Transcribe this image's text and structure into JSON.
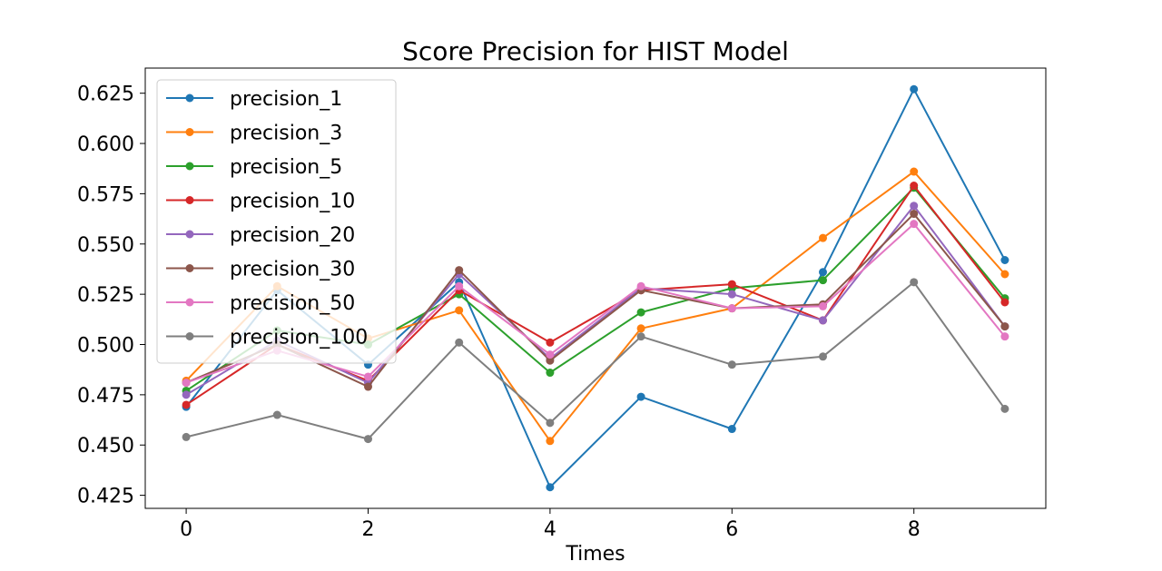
{
  "chart_data": {
    "type": "line",
    "title": "Score Precision for HIST Model",
    "xlabel": "Times",
    "ylabel": "",
    "xlim": [
      -0.45,
      9.45
    ],
    "ylim": [
      0.4185,
      0.6375
    ],
    "xticks": [
      0,
      2,
      4,
      6,
      8
    ],
    "xtick_labels": [
      "0",
      "2",
      "4",
      "6",
      "8"
    ],
    "yticks": [
      0.425,
      0.45,
      0.475,
      0.5,
      0.525,
      0.55,
      0.575,
      0.6,
      0.625
    ],
    "ytick_labels": [
      "0.425",
      "0.450",
      "0.475",
      "0.500",
      "0.525",
      "0.550",
      "0.575",
      "0.600",
      "0.625"
    ],
    "grid": false,
    "legend_position": "upper-left",
    "x": [
      0,
      1,
      2,
      3,
      4,
      5,
      6,
      7,
      8,
      9
    ],
    "series": [
      {
        "name": "precision_1",
        "color": "#1f77b4",
        "values": [
          0.469,
          0.527,
          0.49,
          0.531,
          0.429,
          0.474,
          0.458,
          0.536,
          0.627,
          0.542
        ]
      },
      {
        "name": "precision_3",
        "color": "#ff7f0e",
        "values": [
          0.482,
          0.529,
          0.503,
          0.517,
          0.452,
          0.508,
          0.518,
          0.553,
          0.586,
          0.535
        ]
      },
      {
        "name": "precision_5",
        "color": "#2ca02c",
        "values": [
          0.477,
          0.507,
          0.5,
          0.525,
          0.486,
          0.516,
          0.528,
          0.532,
          0.578,
          0.523
        ]
      },
      {
        "name": "precision_10",
        "color": "#d62728",
        "values": [
          0.47,
          0.5,
          0.482,
          0.527,
          0.501,
          0.527,
          0.53,
          0.512,
          0.579,
          0.521
        ]
      },
      {
        "name": "precision_20",
        "color": "#9467bd",
        "values": [
          0.475,
          0.502,
          0.481,
          0.535,
          0.493,
          0.528,
          0.525,
          0.512,
          0.569,
          0.509
        ]
      },
      {
        "name": "precision_30",
        "color": "#8c564b",
        "values": [
          0.481,
          0.5,
          0.479,
          0.537,
          0.492,
          0.527,
          0.518,
          0.52,
          0.565,
          0.509
        ]
      },
      {
        "name": "precision_50",
        "color": "#e377c2",
        "values": [
          0.481,
          0.497,
          0.484,
          0.529,
          0.495,
          0.529,
          0.518,
          0.519,
          0.56,
          0.504
        ]
      },
      {
        "name": "precision_100",
        "color": "#7f7f7f",
        "values": [
          0.454,
          0.465,
          0.453,
          0.501,
          0.461,
          0.504,
          0.49,
          0.494,
          0.531,
          0.468
        ]
      }
    ]
  }
}
